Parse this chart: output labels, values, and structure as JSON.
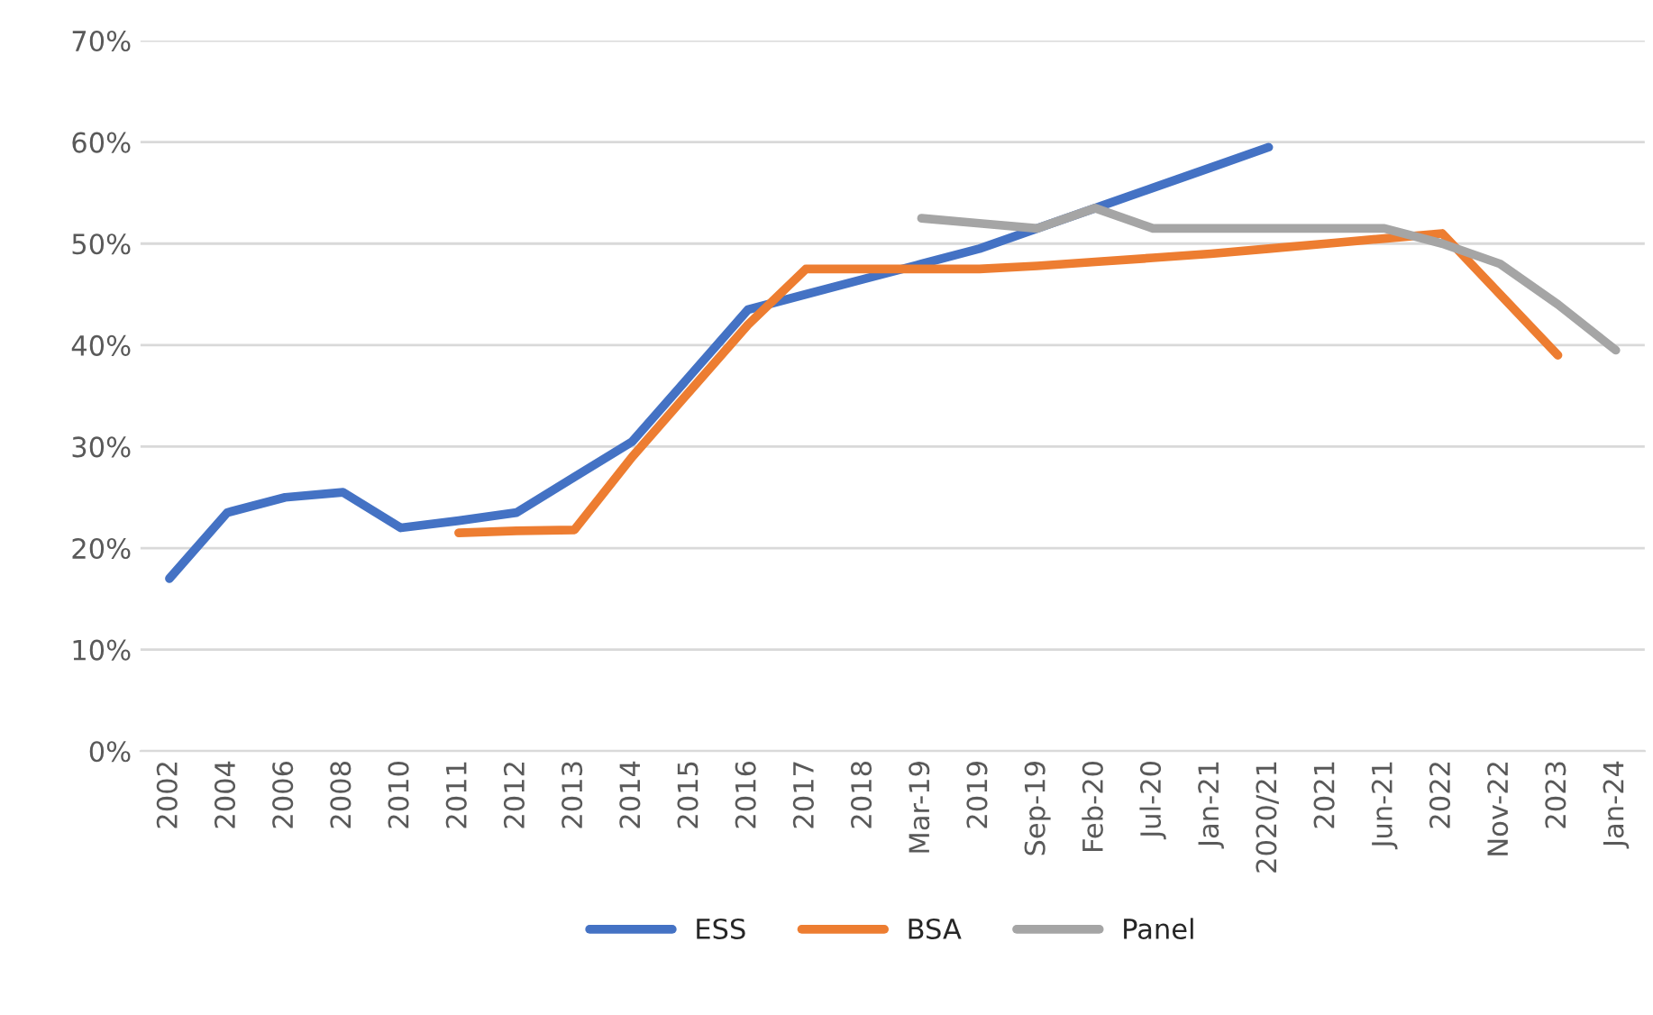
{
  "chart_data": {
    "type": "line",
    "categories": [
      "2002",
      "2004",
      "2006",
      "2008",
      "2010",
      "2011",
      "2012",
      "2013",
      "2014",
      "2015",
      "2016",
      "2017",
      "2018",
      "Mar-19",
      "2019",
      "Sep-19",
      "Feb-20",
      "Jul-20",
      "Jan-21",
      "2020/21",
      "2021",
      "Jun-21",
      "2022",
      "Nov-22",
      "2023",
      "Jan-24"
    ],
    "series": [
      {
        "name": "ESS",
        "color": "#4472c4",
        "values": [
          17,
          23.5,
          25,
          25.5,
          22,
          22.7,
          23.5,
          27,
          30.5,
          37,
          43.5,
          45,
          46.5,
          48,
          49.5,
          51.5,
          53.5,
          55.5,
          57.5,
          59.5,
          null,
          null,
          null,
          null,
          null,
          null
        ]
      },
      {
        "name": "BSA",
        "color": "#ed7d31",
        "values": [
          null,
          null,
          null,
          null,
          null,
          21.5,
          21.7,
          21.8,
          29,
          35.5,
          42,
          47.5,
          47.5,
          47.5,
          47.5,
          47.8,
          48.2,
          48.6,
          49,
          49.5,
          50,
          50.5,
          51,
          45,
          39,
          null
        ]
      },
      {
        "name": "Panel",
        "color": "#a5a5a5",
        "values": [
          null,
          null,
          null,
          null,
          null,
          null,
          null,
          null,
          null,
          null,
          null,
          null,
          null,
          52.5,
          52,
          51.5,
          53.5,
          51.5,
          51.5,
          51.5,
          51.5,
          51.5,
          50,
          48,
          44,
          39.5
        ]
      }
    ],
    "ylim": [
      0,
      70
    ],
    "yticks": [
      {
        "value": 0,
        "label": "0%"
      },
      {
        "value": 10,
        "label": "10%"
      },
      {
        "value": 20,
        "label": "20%"
      },
      {
        "value": 30,
        "label": "30%"
      },
      {
        "value": 40,
        "label": "40%"
      },
      {
        "value": 50,
        "label": "50%"
      },
      {
        "value": 60,
        "label": "60%"
      },
      {
        "value": 70,
        "label": "70%"
      }
    ],
    "grid": "y",
    "legend": "bottom",
    "marker": "none",
    "line_style": "solid"
  }
}
